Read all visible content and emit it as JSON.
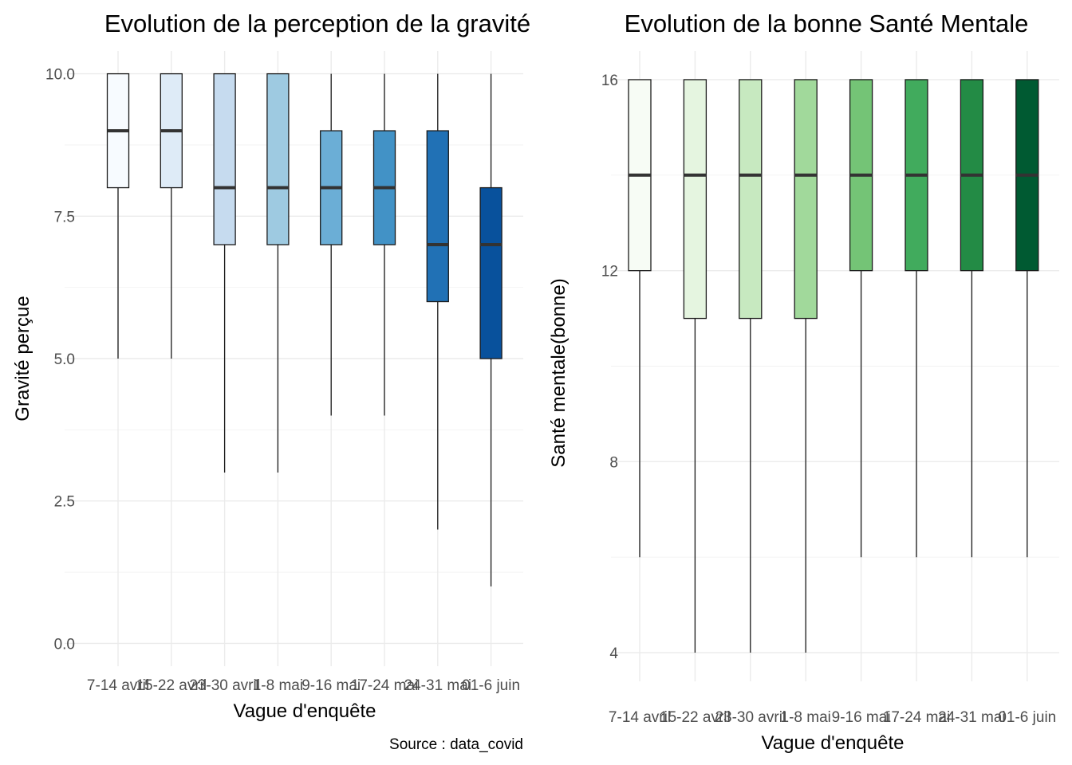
{
  "source_caption": "Source : data_covid",
  "chart_data": [
    {
      "type": "boxplot",
      "title": "Evolution de la perception de la gravité",
      "xlabel": "Vague d'enquête",
      "ylabel": "Gravité perçue",
      "categories": [
        "7-14 avril",
        "15-22 avril",
        "23-30 avril",
        "1-8 mai",
        "9-16 mai",
        "17-24 mai",
        "24-31 mai",
        "01-6 juin"
      ],
      "ylim": [
        -0.4,
        10.4
      ],
      "yticks": [
        0.0,
        2.5,
        5.0,
        7.5,
        10.0
      ],
      "ytick_labels": [
        "0.0",
        "2.5",
        "5.0",
        "7.5",
        "10.0"
      ],
      "grid": true,
      "legend": "none",
      "boxes": [
        {
          "lower": 5,
          "q1": 8,
          "median": 9,
          "q3": 10,
          "upper": 10
        },
        {
          "lower": 5,
          "q1": 8,
          "median": 9,
          "q3": 10,
          "upper": 10
        },
        {
          "lower": 3,
          "q1": 7,
          "median": 8,
          "q3": 10,
          "upper": 10
        },
        {
          "lower": 3,
          "q1": 7,
          "median": 8,
          "q3": 10,
          "upper": 10
        },
        {
          "lower": 4,
          "q1": 7,
          "median": 8,
          "q3": 9,
          "upper": 10
        },
        {
          "lower": 4,
          "q1": 7,
          "median": 8,
          "q3": 9,
          "upper": 10
        },
        {
          "lower": 2,
          "q1": 6,
          "median": 7,
          "q3": 9,
          "upper": 10
        },
        {
          "lower": 1,
          "q1": 5,
          "median": 7,
          "q3": 8,
          "upper": 10
        }
      ],
      "colors": [
        "#f7fbff",
        "#deebf7",
        "#c6dbef",
        "#9ecae1",
        "#6baed6",
        "#4292c6",
        "#2171b5",
        "#08519c"
      ]
    },
    {
      "type": "boxplot",
      "title": "Evolution de la bonne Santé Mentale",
      "xlabel": "Vague d'enquête",
      "ylabel": "Santé mentale(bonne)",
      "categories": [
        "7-14 avril",
        "15-22 avril",
        "23-30 avril",
        "1-8 mai",
        "9-16 mai",
        "17-24 mai",
        "24-31 mai",
        "01-6 juin"
      ],
      "ylim": [
        3.4,
        16.6
      ],
      "yticks": [
        4,
        8,
        12,
        16
      ],
      "ytick_labels": [
        "4",
        "8",
        "12",
        "16"
      ],
      "grid": true,
      "legend": "none",
      "boxes": [
        {
          "lower": 6,
          "q1": 12,
          "median": 14,
          "q3": 16,
          "upper": 16
        },
        {
          "lower": 4,
          "q1": 11,
          "median": 14,
          "q3": 16,
          "upper": 16
        },
        {
          "lower": 4,
          "q1": 11,
          "median": 14,
          "q3": 16,
          "upper": 16
        },
        {
          "lower": 4,
          "q1": 11,
          "median": 14,
          "q3": 16,
          "upper": 16
        },
        {
          "lower": 6,
          "q1": 12,
          "median": 14,
          "q3": 16,
          "upper": 16
        },
        {
          "lower": 6,
          "q1": 12,
          "median": 14,
          "q3": 16,
          "upper": 16
        },
        {
          "lower": 6,
          "q1": 12,
          "median": 14,
          "q3": 16,
          "upper": 16
        },
        {
          "lower": 6,
          "q1": 12,
          "median": 14,
          "q3": 16,
          "upper": 16
        }
      ],
      "colors": [
        "#f7fcf5",
        "#e5f5e0",
        "#c7e9c0",
        "#a1d99b",
        "#74c476",
        "#41ab5d",
        "#238b45",
        "#005a32"
      ]
    }
  ]
}
